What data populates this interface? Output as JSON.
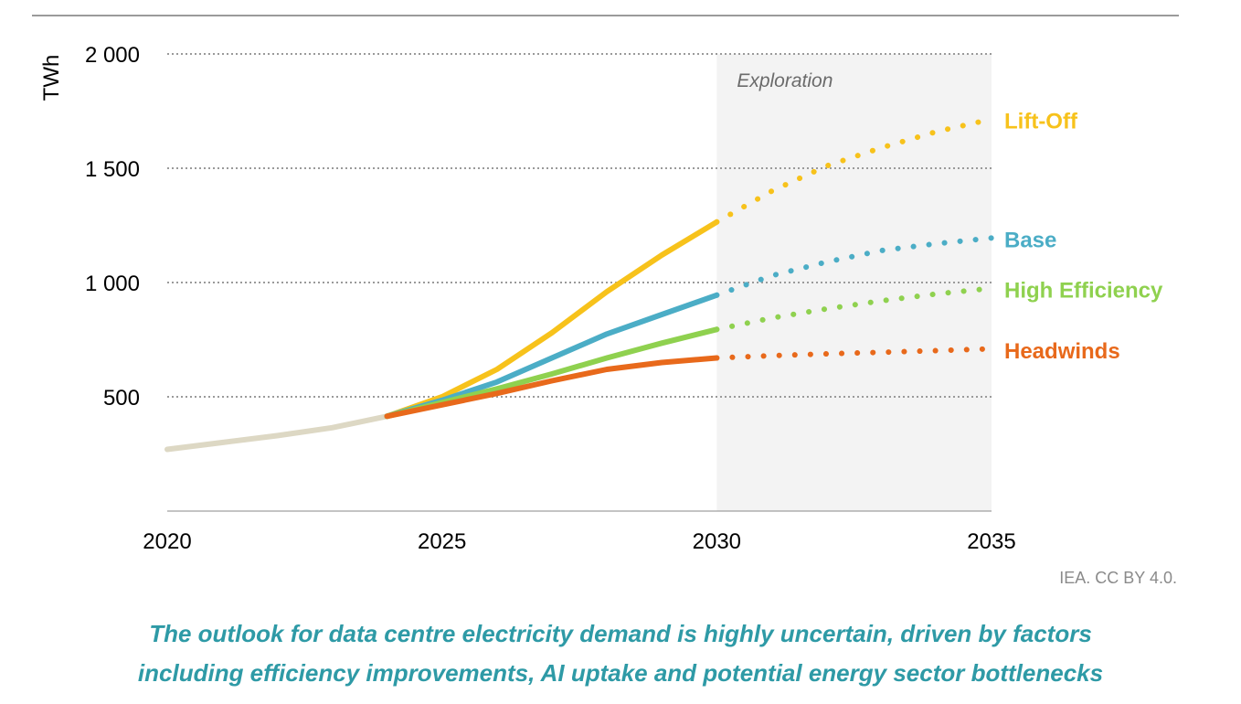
{
  "chart_data": {
    "type": "line",
    "ylabel": "TWh",
    "xlim": [
      2020,
      2035
    ],
    "ylim": [
      0,
      2000
    ],
    "x_ticks": [
      "2020",
      "2025",
      "2030",
      "2035"
    ],
    "y_ticks": [
      "500",
      "1 000",
      "1 500",
      "2 000"
    ],
    "y_tick_values": [
      500,
      1000,
      1500,
      2000
    ],
    "x_tick_values": [
      2020,
      2025,
      2030,
      2035
    ],
    "grid": "horizontal-dotted",
    "shaded_region": {
      "label": "Exploration",
      "x_start": 2030,
      "x_end": 2035
    },
    "series": [
      {
        "name": "",
        "color": "#ddd8c4",
        "style": "solid",
        "x": [
          2020,
          2021,
          2022,
          2023,
          2024
        ],
        "y": [
          270,
          300,
          330,
          365,
          415
        ]
      },
      {
        "name": "Lift-Off",
        "color": "#f7c21b",
        "style": "solid",
        "x": [
          2024,
          2025,
          2026,
          2027,
          2028,
          2029,
          2030
        ],
        "y": [
          415,
          500,
          620,
          780,
          960,
          1120,
          1265
        ]
      },
      {
        "name": "Lift-Off",
        "color": "#f7c21b",
        "style": "dotted",
        "x": [
          2030,
          2031,
          2032,
          2033,
          2034,
          2035
        ],
        "y": [
          1265,
          1400,
          1510,
          1590,
          1660,
          1715
        ]
      },
      {
        "name": "Base",
        "color": "#4badc6",
        "style": "solid",
        "x": [
          2024,
          2025,
          2026,
          2027,
          2028,
          2029,
          2030
        ],
        "y": [
          415,
          485,
          565,
          670,
          775,
          860,
          945
        ]
      },
      {
        "name": "Base",
        "color": "#4badc6",
        "style": "dotted",
        "x": [
          2030,
          2031,
          2032,
          2033,
          2034,
          2035
        ],
        "y": [
          945,
          1030,
          1090,
          1140,
          1170,
          1195
        ]
      },
      {
        "name": "High Efficiency",
        "color": "#8fd14f",
        "style": "solid",
        "x": [
          2024,
          2025,
          2026,
          2027,
          2028,
          2029,
          2030
        ],
        "y": [
          415,
          475,
          535,
          600,
          670,
          735,
          795
        ]
      },
      {
        "name": "High Efficiency",
        "color": "#8fd14f",
        "style": "dotted",
        "x": [
          2030,
          2031,
          2032,
          2033,
          2034,
          2035
        ],
        "y": [
          795,
          845,
          885,
          920,
          950,
          975
        ]
      },
      {
        "name": "Headwinds",
        "color": "#e8691b",
        "style": "solid",
        "x": [
          2024,
          2025,
          2026,
          2027,
          2028,
          2029,
          2030
        ],
        "y": [
          415,
          465,
          515,
          570,
          620,
          650,
          670
        ]
      },
      {
        "name": "Headwinds",
        "color": "#e8691b",
        "style": "dotted",
        "x": [
          2030,
          2031,
          2032,
          2033,
          2034,
          2035
        ],
        "y": [
          670,
          680,
          688,
          695,
          702,
          710
        ]
      }
    ],
    "end_labels": [
      {
        "text": "Lift-Off",
        "color": "#f7c21b",
        "anchor_y": 1710
      },
      {
        "text": "Base",
        "color": "#4badc6",
        "anchor_y": 1190
      },
      {
        "text": "High Efficiency",
        "color": "#8fd14f",
        "anchor_y": 970
      },
      {
        "text": "Headwinds",
        "color": "#e8691b",
        "anchor_y": 705
      }
    ]
  },
  "credit": "IEA. CC BY 4.0.",
  "caption_line1": "The outlook for data centre electricity demand is highly uncertain, driven by factors",
  "caption_line2": "including efficiency improvements, AI uptake and potential energy sector bottlenecks"
}
